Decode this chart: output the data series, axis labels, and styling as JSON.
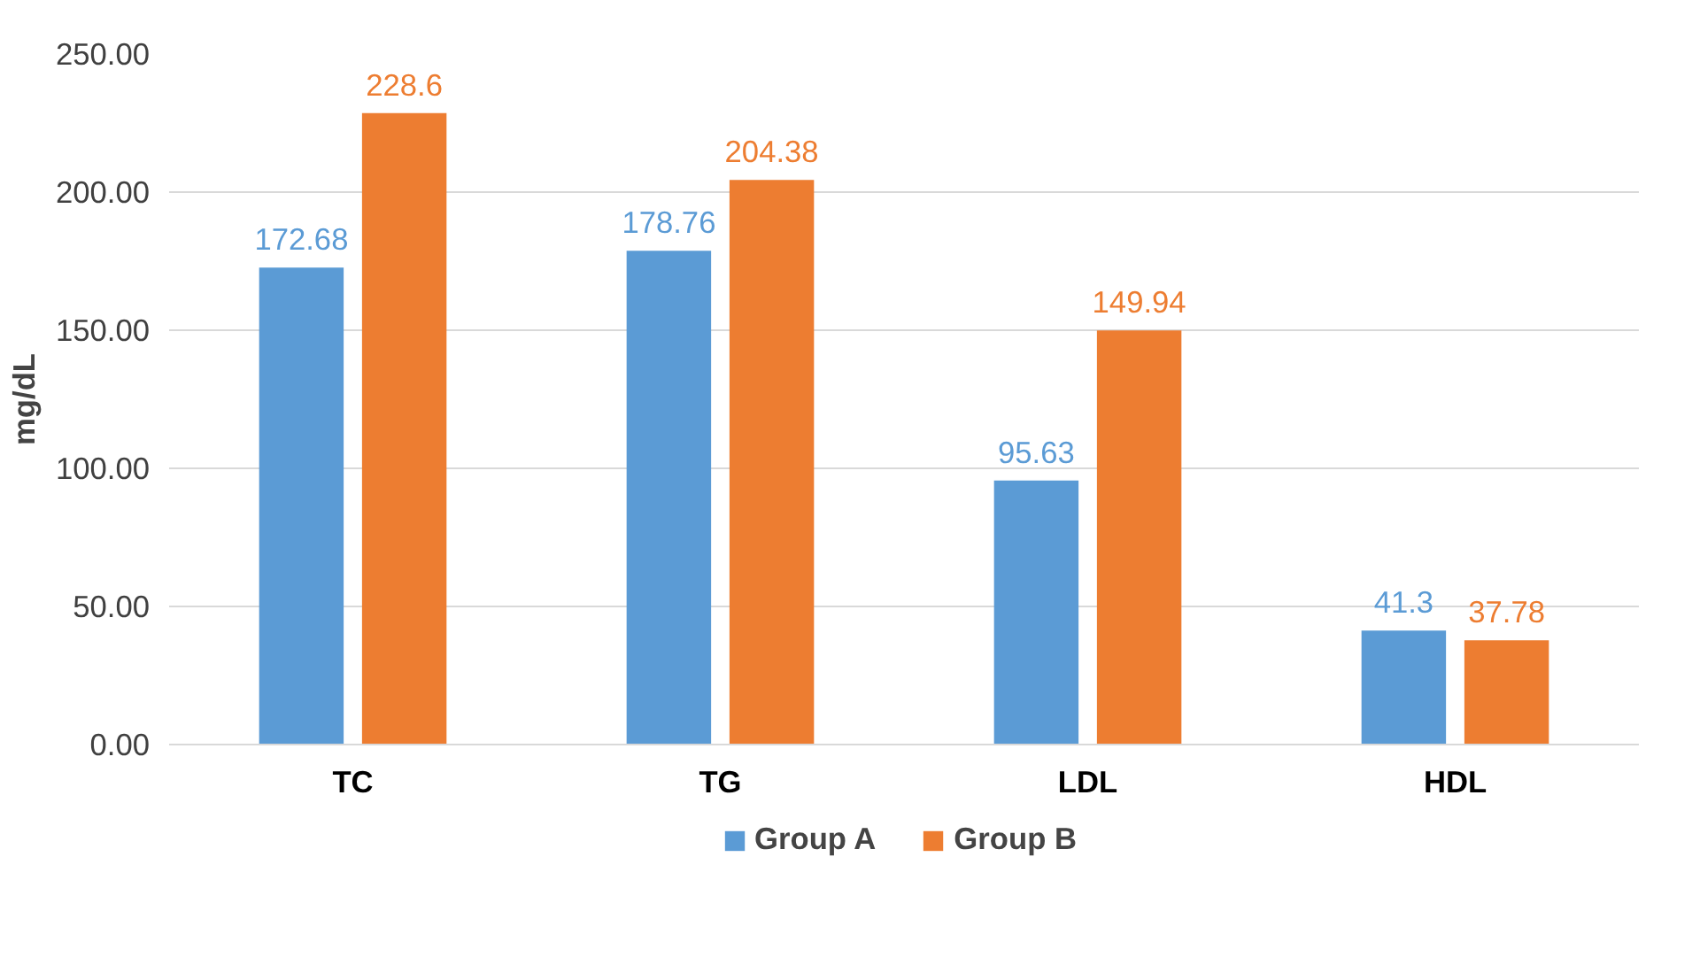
{
  "chart_data": {
    "type": "bar",
    "ylabel": "mg/dL",
    "categories": [
      "TC",
      "TG",
      "LDL",
      "HDL"
    ],
    "series": [
      {
        "name": "Group A",
        "color": "#5b9bd5",
        "values": [
          172.68,
          178.76,
          95.63,
          41.3
        ]
      },
      {
        "name": "Group B",
        "color": "#ed7d31",
        "values": [
          228.6,
          204.38,
          149.94,
          37.78
        ]
      }
    ],
    "ylim": [
      0,
      250
    ],
    "yticks": [
      {
        "value": 0,
        "label": "0.00"
      },
      {
        "value": 50,
        "label": "50.00"
      },
      {
        "value": 100,
        "label": "100.00"
      },
      {
        "value": 150,
        "label": "150.00"
      },
      {
        "value": 200,
        "label": "200.00"
      },
      {
        "value": 250,
        "label": "250.00"
      }
    ],
    "grid": "y",
    "legend": "bottom",
    "data_labels": true
  }
}
